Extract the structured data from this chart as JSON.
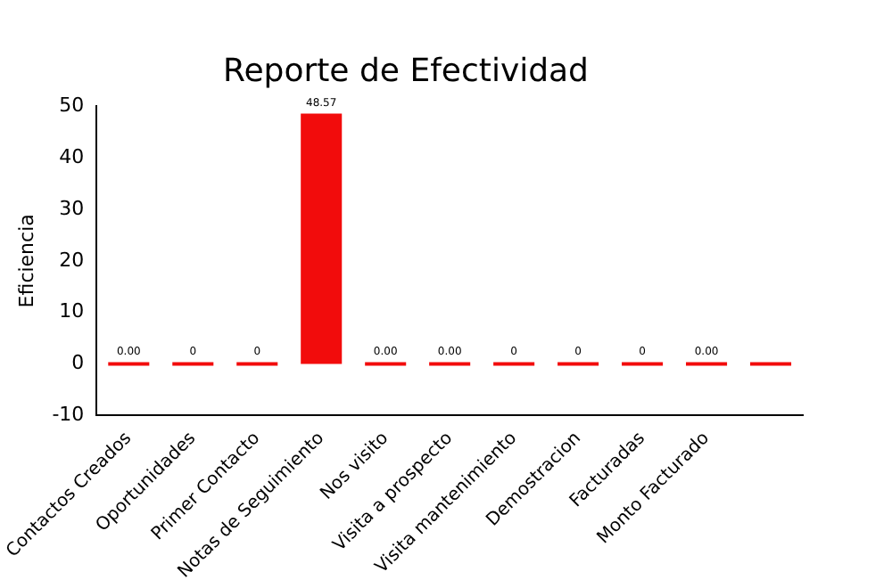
{
  "chart_data": {
    "type": "bar",
    "title": "Reporte de Efectividad",
    "ylabel": "Eficiencia",
    "categories": [
      "Contactos Creados",
      "Oportunidades",
      "Primer Contacto",
      "Notas de Seguimiento",
      "Nos visito",
      "Visita a prospecto",
      "Visita mantenimiento",
      "Demostracion",
      "Facturadas",
      "Monto Facturado",
      null
    ],
    "values": [
      0,
      0,
      0,
      48.57,
      0,
      0,
      0,
      0,
      0,
      0,
      0
    ],
    "value_labels": [
      "0.00",
      "0",
      "0",
      "48.57",
      "0.00",
      "0.00",
      "0",
      "0",
      "0",
      "0.00",
      null
    ],
    "color": "#f20c0c",
    "ylim": [
      -10,
      50
    ],
    "yticks": [
      -10,
      0,
      10,
      20,
      30,
      40,
      50
    ],
    "grid": false
  }
}
